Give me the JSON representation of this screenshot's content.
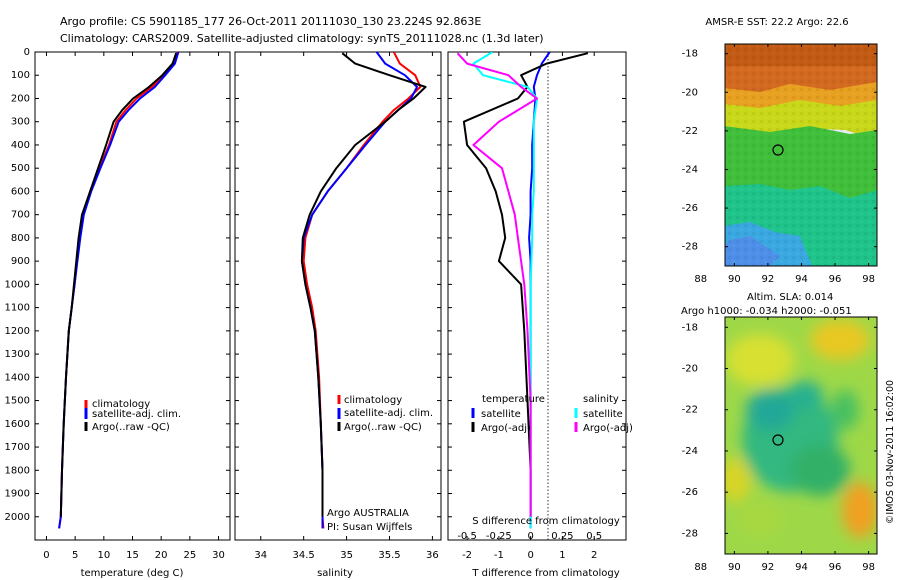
{
  "header": {
    "line1": "Argo profile: CS 5901185_177 26-Oct-2011 20111030_130 23.224S 92.863E",
    "line2": "Climatology: CARS2009. Satellite-adjusted climatology: synTS_20111028.nc (1.3d later)"
  },
  "colors": {
    "climatology": "#ff0000",
    "satellite": "#0000ff",
    "argo": "#000000",
    "argo_salinity_diff": "#ff00ff",
    "satellite_salinity_diff": "#00ffff"
  },
  "chart_data": [
    {
      "type": "line",
      "panel": "temperature",
      "xlabel": "temperature (deg C)",
      "ylabel": "",
      "xlim": [
        -2,
        32
      ],
      "ylim": [
        2100,
        0
      ],
      "xticks": [
        "0",
        "5",
        "10",
        "15",
        "20",
        "25",
        "30"
      ],
      "yticks": [
        "0",
        "100",
        "200",
        "300",
        "400",
        "500",
        "600",
        "700",
        "800",
        "900",
        "1000",
        "1100",
        "1200",
        "1300",
        "1400",
        "1500",
        "1600",
        "1700",
        "1800",
        "1900",
        "2000"
      ],
      "legend": [
        "climatology",
        "satellite-adj. clim.",
        "Argo(..raw -QC)"
      ],
      "legend_position": "lower-center",
      "series": [
        {
          "name": "climatology",
          "color": "#ff0000",
          "x": [
            22.8,
            22.2,
            20.5,
            18.4,
            15.7,
            13.8,
            12.2,
            10.9,
            9.2,
            7.6,
            6.4,
            5.8,
            5.3,
            4.9,
            4.4,
            3.9,
            3.4,
            3.0,
            2.7,
            2.5,
            2.2
          ],
          "y": [
            0,
            50,
            100,
            150,
            200,
            250,
            300,
            400,
            500,
            600,
            700,
            800,
            900,
            1000,
            1100,
            1200,
            1400,
            1600,
            1800,
            2000,
            2050
          ]
        },
        {
          "name": "satellite-adj. clim.",
          "color": "#0000ff",
          "x": [
            23.0,
            22.4,
            20.7,
            18.9,
            16.3,
            14.3,
            12.6,
            11.1,
            9.4,
            7.8,
            6.5,
            5.9,
            5.4,
            4.9,
            4.4,
            3.9,
            3.4,
            3.0,
            2.7,
            2.5,
            2.2
          ],
          "y": [
            0,
            50,
            100,
            150,
            200,
            250,
            300,
            400,
            500,
            600,
            700,
            800,
            900,
            1000,
            1100,
            1200,
            1400,
            1600,
            1800,
            2000,
            2050
          ]
        },
        {
          "name": "Argo(..raw -QC)",
          "color": "#000000",
          "x": [
            22.6,
            22.0,
            20.2,
            17.9,
            15.1,
            13.2,
            11.7,
            10.4,
            9.0,
            7.6,
            6.2,
            5.6,
            5.2,
            4.8,
            4.4,
            3.9,
            3.4,
            3.0,
            2.7,
            2.5
          ],
          "y": [
            5,
            50,
            100,
            150,
            200,
            250,
            300,
            400,
            500,
            600,
            700,
            800,
            900,
            1000,
            1100,
            1200,
            1400,
            1600,
            1800,
            2000
          ]
        }
      ],
      "annotations": []
    },
    {
      "type": "line",
      "panel": "salinity",
      "xlabel": "salinity",
      "ylabel": "",
      "xlim": [
        33.7,
        36.1
      ],
      "ylim": [
        2100,
        0
      ],
      "xticks": [
        "34",
        "34.5",
        "35",
        "35.5",
        "36"
      ],
      "legend": [
        "climatology",
        "satellite-adj. clim.",
        "Argo(..raw -QC)"
      ],
      "legend_position": "lower-center",
      "series": [
        {
          "name": "climatology",
          "color": "#ff0000",
          "x": [
            35.55,
            35.62,
            35.8,
            35.86,
            35.72,
            35.55,
            35.42,
            35.2,
            35.0,
            34.78,
            34.6,
            34.52,
            34.5,
            34.54,
            34.6,
            34.64,
            34.68,
            34.7,
            34.72,
            34.72,
            34.73
          ],
          "y": [
            0,
            50,
            100,
            150,
            200,
            250,
            300,
            400,
            500,
            600,
            700,
            800,
            900,
            1000,
            1100,
            1200,
            1400,
            1600,
            1800,
            2000,
            2050
          ]
        },
        {
          "name": "satellite-adj. clim.",
          "color": "#0000ff",
          "x": [
            35.35,
            35.45,
            35.68,
            35.82,
            35.75,
            35.6,
            35.45,
            35.22,
            35.0,
            34.78,
            34.6,
            34.5,
            34.48,
            34.52,
            34.58,
            34.63,
            34.67,
            34.7,
            34.72,
            34.72,
            34.72
          ],
          "y": [
            0,
            50,
            100,
            150,
            200,
            250,
            300,
            400,
            500,
            600,
            700,
            800,
            900,
            1000,
            1100,
            1200,
            1400,
            1600,
            1800,
            2000,
            2050
          ]
        },
        {
          "name": "Argo(..raw -QC)",
          "color": "#000000",
          "x": [
            34.95,
            35.1,
            35.5,
            35.92,
            35.78,
            35.6,
            35.45,
            35.1,
            34.88,
            34.7,
            34.57,
            34.49,
            34.48,
            34.52,
            34.58,
            34.63,
            34.67,
            34.7,
            34.72,
            34.72
          ],
          "y": [
            5,
            50,
            100,
            150,
            200,
            250,
            300,
            400,
            500,
            600,
            700,
            800,
            900,
            1000,
            1100,
            1200,
            1400,
            1600,
            1800,
            2000
          ]
        }
      ],
      "annotations": [
        "Argo AUSTRALIA",
        "PI: Susan Wijffels"
      ]
    },
    {
      "type": "line",
      "panel": "difference",
      "xlabel": "T difference from climatology",
      "x2label": "S difference from climatology",
      "ylabel": "",
      "xlim": [
        -2.6,
        3.0
      ],
      "ylim": [
        2100,
        0
      ],
      "xticks": [
        "-2",
        "-1",
        "0",
        "1",
        "2"
      ],
      "x2ticks": [
        "-0.5",
        "-0.25",
        "0",
        "0.25",
        "0.5"
      ],
      "legend_groups": [
        {
          "title": "temperature",
          "entries": [
            "satellite",
            "Argo(-adj)"
          ]
        },
        {
          "title": "salinity",
          "entries": [
            "satellite",
            "Argo(-adj)"
          ]
        }
      ],
      "legend_position": "lower-center",
      "series": [
        {
          "name": "satellite",
          "group": "temperature",
          "color": "#0000ff",
          "x": [
            0.6,
            0.35,
            0.2,
            0.1,
            0.15,
            0.1,
            0.05,
            0.05,
            0.0,
            0.0,
            -0.05,
            0.0,
            0.0,
            0.0,
            0.0,
            0.0,
            0.0
          ],
          "y": [
            0,
            50,
            100,
            150,
            200,
            300,
            400,
            500,
            600,
            700,
            800,
            900,
            1000,
            1200,
            1500,
            1800,
            2050
          ]
        },
        {
          "name": "Argo(-adj)",
          "group": "temperature",
          "color": "#000000",
          "x": [
            1.8,
            0.5,
            -0.3,
            -0.1,
            -0.4,
            -2.1,
            -2.0,
            -1.4,
            -1.1,
            -0.9,
            -0.8,
            -1.0,
            -0.3,
            -0.2,
            -0.1,
            0.0,
            0.0
          ],
          "y": [
            5,
            50,
            100,
            150,
            200,
            300,
            400,
            500,
            600,
            700,
            800,
            900,
            1000,
            1200,
            1500,
            1800,
            2000
          ]
        },
        {
          "name": "satellite",
          "group": "salinity",
          "color": "#00ffff",
          "x": [
            -1.2,
            -1.8,
            -1.5,
            -0.1,
            0.2,
            0.1,
            0.1,
            0.1,
            0.1,
            0.05,
            0.05,
            0.0,
            0.0,
            0.0,
            0.0,
            0.0
          ],
          "y": [
            0,
            50,
            100,
            150,
            200,
            300,
            400,
            500,
            600,
            700,
            800,
            1000,
            1200,
            1500,
            1800,
            2050
          ]
        },
        {
          "name": "Argo(-adj)",
          "group": "salinity",
          "color": "#ff00ff",
          "x": [
            -2.3,
            -2.0,
            -0.7,
            -0.3,
            0.2,
            -1.0,
            -1.8,
            -0.9,
            -0.7,
            -0.5,
            -0.4,
            -0.2,
            -0.1,
            0.0,
            0.0,
            0.0
          ],
          "y": [
            5,
            50,
            100,
            150,
            200,
            300,
            400,
            500,
            600,
            700,
            800,
            1000,
            1200,
            1500,
            1800,
            2000
          ]
        }
      ],
      "annotations": []
    },
    {
      "type": "heatmap",
      "panel": "sst-map",
      "title": "AMSR-E SST: 22.2 Argo: 22.6",
      "xlim": [
        87,
        98.5
      ],
      "ylim": [
        -29,
        -17.5
      ],
      "xticks": [
        "88",
        "90",
        "92",
        "94",
        "96",
        "98"
      ],
      "yticks": [
        "-18",
        "-20",
        "-22",
        "-24",
        "-26",
        "-28"
      ],
      "marker": {
        "lon": 92.86,
        "lat": -23.22
      }
    },
    {
      "type": "heatmap",
      "panel": "sla-map",
      "title": "Altim. SLA: 0.014",
      "subtitle": "Argo h1000: -0.034 h2000: -0.051",
      "xlim": [
        87,
        98.5
      ],
      "ylim": [
        -29,
        -17.5
      ],
      "xticks": [
        "88",
        "90",
        "92",
        "94",
        "96",
        "98"
      ],
      "yticks": [
        "-18",
        "-20",
        "-22",
        "-24",
        "-26",
        "-28"
      ],
      "marker": {
        "lon": 92.86,
        "lat": -23.22
      }
    }
  ],
  "footer": {
    "credit": "©IMOS 03-Nov-2011 16:02:00"
  }
}
